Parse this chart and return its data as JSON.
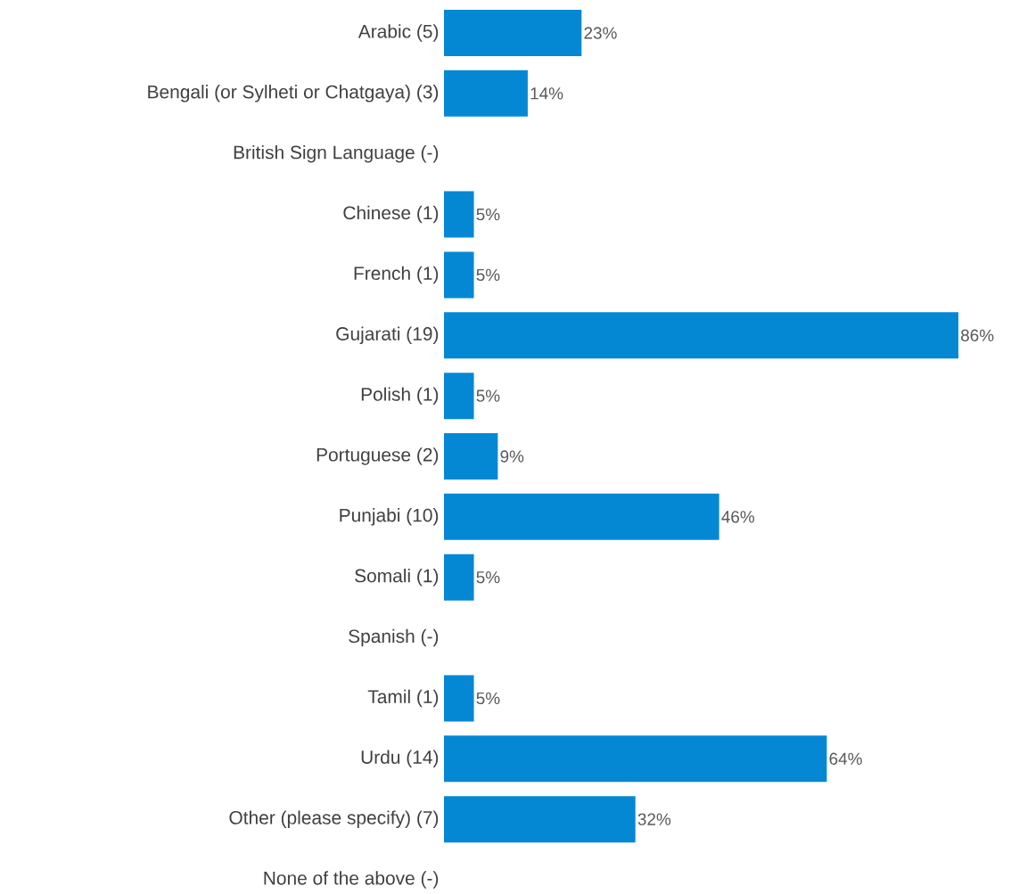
{
  "chart_data": {
    "type": "bar",
    "orientation": "horizontal",
    "color": "#0588d4",
    "categories": [
      "Arabic (5)",
      "Bengali (or Sylheti or Chatgaya) (3)",
      "British Sign Language (-)",
      "Chinese (1)",
      "French (1)",
      "Gujarati (19)",
      "Polish (1)",
      "Portuguese (2)",
      "Punjabi (10)",
      "Somali (1)",
      "Spanish (-)",
      "Tamil (1)",
      "Urdu (14)",
      "Other (please specify) (7)",
      "None of the above (-)"
    ],
    "values": [
      23,
      14,
      null,
      5,
      5,
      86,
      5,
      9,
      46,
      5,
      null,
      5,
      64,
      32,
      null
    ],
    "value_labels": [
      "23%",
      "14%",
      null,
      "5%",
      "5%",
      "86%",
      "5%",
      "9%",
      "46%",
      "5%",
      null,
      "5%",
      "64%",
      "32%",
      null
    ]
  }
}
